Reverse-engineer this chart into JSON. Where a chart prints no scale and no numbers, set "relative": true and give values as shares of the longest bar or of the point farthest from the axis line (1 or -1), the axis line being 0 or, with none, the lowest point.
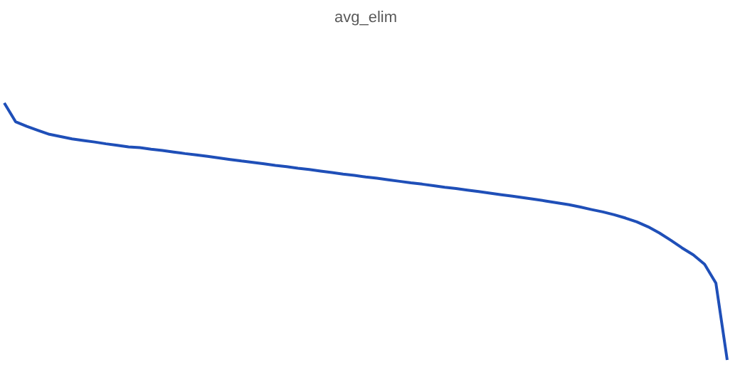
{
  "chart_data": {
    "type": "line",
    "title": "avg_elim",
    "relative": true,
    "marker": "none",
    "line_style": "solid",
    "categories": [
      null,
      null,
      null,
      null,
      null,
      null,
      null,
      null,
      null,
      null,
      null,
      null,
      null,
      null,
      null,
      null,
      null,
      null,
      null,
      null,
      null,
      null,
      null,
      null,
      null,
      null,
      null,
      null,
      null,
      null,
      null,
      null,
      null,
      null,
      null,
      null,
      null,
      null,
      null,
      null,
      null,
      null,
      null,
      null,
      null,
      null,
      null,
      null,
      null,
      null,
      null,
      null,
      null,
      null,
      null,
      null,
      null,
      null,
      null,
      null,
      null,
      null,
      null,
      null,
      null
    ],
    "series": [
      {
        "color": "#1f4fb8",
        "values": [
          1,
          0.927,
          0.909,
          0.893,
          0.878,
          0.869,
          0.86,
          0.854,
          0.848,
          0.841,
          0.835,
          0.829,
          0.826,
          0.82,
          0.815,
          0.809,
          0.803,
          0.798,
          0.792,
          0.786,
          0.78,
          0.774,
          0.769,
          0.763,
          0.757,
          0.752,
          0.746,
          0.741,
          0.735,
          0.729,
          0.723,
          0.718,
          0.712,
          0.707,
          0.701,
          0.695,
          0.689,
          0.684,
          0.678,
          0.672,
          0.667,
          0.661,
          0.655,
          0.649,
          0.643,
          0.637,
          0.631,
          0.625,
          0.618,
          0.611,
          0.604,
          0.595,
          0.585,
          0.576,
          0.565,
          0.552,
          0.537,
          0.518,
          0.494,
          0.466,
          0.436,
          0.409,
          0.372,
          0.299,
          0
        ]
      }
    ]
  }
}
